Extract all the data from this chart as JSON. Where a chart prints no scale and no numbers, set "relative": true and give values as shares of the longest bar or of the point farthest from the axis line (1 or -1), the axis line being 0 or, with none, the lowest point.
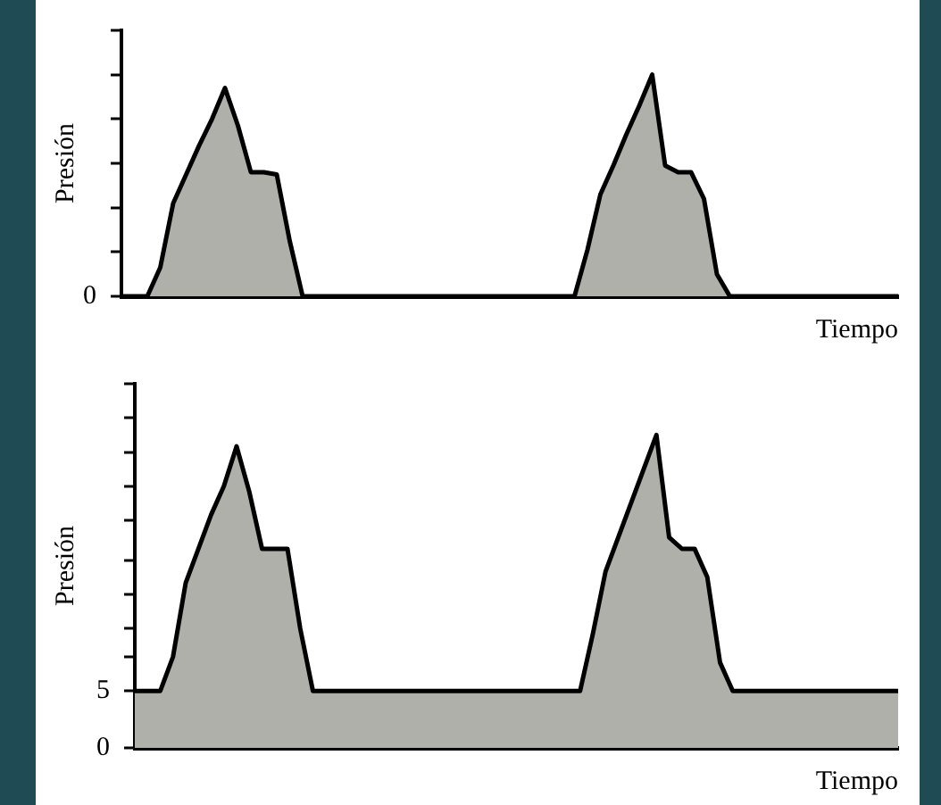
{
  "chart_data": [
    {
      "type": "area",
      "relative": true,
      "ylabel": "Presión",
      "xlabel": "Tiempo",
      "categories": [
        null,
        null,
        null,
        null,
        null,
        null,
        null,
        null,
        null,
        null,
        null,
        null,
        null,
        null,
        null,
        null,
        null,
        null,
        null,
        null,
        null,
        null,
        null,
        null,
        null,
        null,
        null,
        null,
        null,
        null,
        null,
        null,
        null,
        null,
        null,
        null,
        null,
        null,
        null,
        null,
        null,
        null,
        null,
        null,
        null,
        null,
        null,
        null,
        null,
        null,
        null,
        null,
        null,
        null,
        null,
        null,
        null,
        null,
        null,
        null,
        null
      ],
      "annotations": [
        "0"
      ],
      "grid": false,
      "legend": false,
      "series": [
        {
          "color": "#b0b0ab",
          "values": [
            0,
            0,
            0,
            0.13,
            0.42,
            0.55,
            0.68,
            0.8,
            0.94,
            0.77,
            0.56,
            0.56,
            0.55,
            0.25,
            0,
            0,
            0,
            0,
            0,
            0,
            0,
            0,
            0,
            0,
            0,
            0,
            0,
            0,
            0,
            0,
            0,
            0,
            0,
            0,
            0,
            0,
            0.21,
            0.46,
            0.59,
            0.73,
            0.86,
            1,
            0.59,
            0.56,
            0.56,
            0.44,
            0.1,
            0,
            0,
            0,
            0,
            0,
            0,
            0,
            0,
            0,
            0,
            0,
            0,
            0,
            0
          ]
        }
      ]
    },
    {
      "type": "area",
      "ylabel": "Presión",
      "xlabel": "Tiempo",
      "categories": [
        null,
        null,
        null,
        null,
        null,
        null,
        null,
        null,
        null,
        null,
        null,
        null,
        null,
        null,
        null,
        null,
        null,
        null,
        null,
        null,
        null,
        null,
        null,
        null,
        null,
        null,
        null,
        null,
        null,
        null,
        null,
        null,
        null,
        null,
        null,
        null,
        null,
        null,
        null,
        null,
        null,
        null,
        null,
        null,
        null,
        null,
        null,
        null,
        null,
        null,
        null,
        null,
        null,
        null,
        null,
        null,
        null,
        null,
        null,
        null,
        null
      ],
      "ylim": [
        0,
        32
      ],
      "yticks": [
        0,
        5,
        {
          "value": 8,
          "label": null
        },
        {
          "value": 10.5,
          "label": null
        },
        {
          "value": 13.5,
          "label": null
        },
        {
          "value": 16.5,
          "label": null
        },
        {
          "value": 20,
          "label": null
        },
        {
          "value": 23,
          "label": null
        },
        {
          "value": 26,
          "label": null
        },
        {
          "value": 29,
          "label": null
        },
        {
          "value": 32,
          "label": null
        }
      ],
      "grid": false,
      "legend": false,
      "series": [
        {
          "color": "#b0b0ab",
          "values": [
            5,
            5,
            5,
            8,
            14.5,
            17.5,
            20.5,
            23,
            26.5,
            22.5,
            17.5,
            17.5,
            17.5,
            10.5,
            5,
            5,
            5,
            5,
            5,
            5,
            5,
            5,
            5,
            5,
            5,
            5,
            5,
            5,
            5,
            5,
            5,
            5,
            5,
            5,
            5,
            5,
            10,
            15.5,
            18.5,
            21.5,
            24.5,
            27.5,
            18.5,
            17.5,
            17.5,
            15,
            7.5,
            5,
            5,
            5,
            5,
            5,
            5,
            5,
            5,
            5,
            5,
            5,
            5,
            5,
            5
          ]
        }
      ]
    }
  ]
}
